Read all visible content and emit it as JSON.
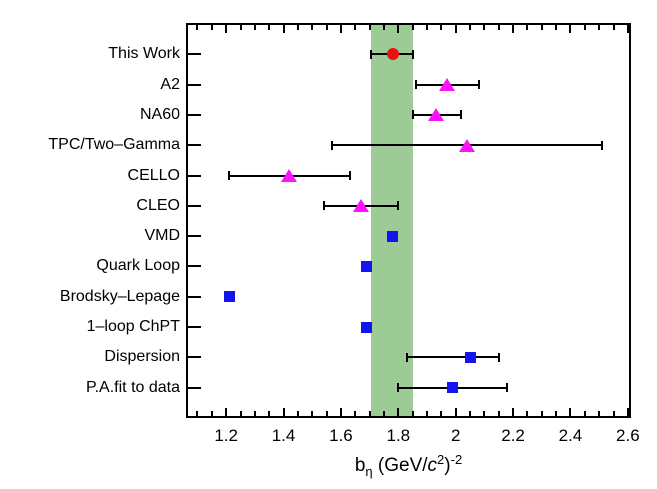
{
  "chart_data": {
    "type": "scatter",
    "title": "",
    "orientation": "horizontal-categories",
    "xlabel_tokens": [
      {
        "t": "b",
        "s": "n"
      },
      {
        "t": "η",
        "s": "sub"
      },
      {
        "t": " (GeV/",
        "s": "n"
      },
      {
        "t": "c",
        "s": "i"
      },
      {
        "t": "2",
        "s": "sup"
      },
      {
        "t": ")",
        "s": "n"
      },
      {
        "t": "-2",
        "s": "sup"
      }
    ],
    "xlim": [
      1.067,
      2.604
    ],
    "x_major_ticks": [
      {
        "v": 1.2,
        "label": "1.2"
      },
      {
        "v": 1.4,
        "label": "1.4"
      },
      {
        "v": 1.6,
        "label": "1.6"
      },
      {
        "v": 1.8,
        "label": "1.8"
      },
      {
        "v": 2.0,
        "label": "2"
      },
      {
        "v": 2.2,
        "label": "2.2"
      },
      {
        "v": 2.4,
        "label": "2.4"
      },
      {
        "v": 2.6,
        "label": "2.6"
      }
    ],
    "x_minor_step": 0.05,
    "grid": false,
    "legend": "none",
    "band": {
      "from": 1.705,
      "to": 1.851,
      "meaning": "this-work-uncertainty-band"
    },
    "rows": [
      {
        "label": "This Work",
        "marker": "circle",
        "colorKey": "red",
        "x": 1.78,
        "err": [
          1.706,
          1.85
        ]
      },
      {
        "label": "A2",
        "marker": "triangle",
        "colorKey": "magenta",
        "x": 1.97,
        "err": [
          1.86,
          2.08
        ]
      },
      {
        "label": "NA60",
        "marker": "triangle",
        "colorKey": "magenta",
        "x": 1.93,
        "err": [
          1.85,
          2.02
        ]
      },
      {
        "label": "TPC/Two–Gamma",
        "marker": "triangle",
        "colorKey": "magenta",
        "x": 2.04,
        "err": [
          1.57,
          2.51
        ]
      },
      {
        "label": "CELLO",
        "marker": "triangle",
        "colorKey": "magenta",
        "x": 1.42,
        "err": [
          1.21,
          1.63
        ]
      },
      {
        "label": "CLEO",
        "marker": "triangle",
        "colorKey": "magenta",
        "x": 1.67,
        "err": [
          1.54,
          1.8
        ]
      },
      {
        "label": "VMD",
        "marker": "square",
        "colorKey": "blue",
        "x": 1.78,
        "err": null
      },
      {
        "label": "Quark Loop",
        "marker": "square",
        "colorKey": "blue",
        "x": 1.69,
        "err": null
      },
      {
        "label": "Brodsky–Lepage",
        "marker": "square",
        "colorKey": "blue",
        "x": 1.21,
        "err": null
      },
      {
        "label": "1–loop ChPT",
        "marker": "square",
        "colorKey": "blue",
        "x": 1.69,
        "err": null
      },
      {
        "label": "Dispersion",
        "marker": "square",
        "colorKey": "blue",
        "x": 2.05,
        "err": [
          1.83,
          2.15
        ]
      },
      {
        "label": "P.A.fit to data",
        "marker": "square",
        "colorKey": "blue",
        "x": 1.99,
        "err": [
          1.8,
          2.18
        ]
      }
    ],
    "colors": {
      "red": "#ee1111",
      "magenta": "#fa14fa",
      "blue": "#1414f0",
      "band": "#9ccb96",
      "axis": "#000000",
      "text": "#000000"
    }
  }
}
